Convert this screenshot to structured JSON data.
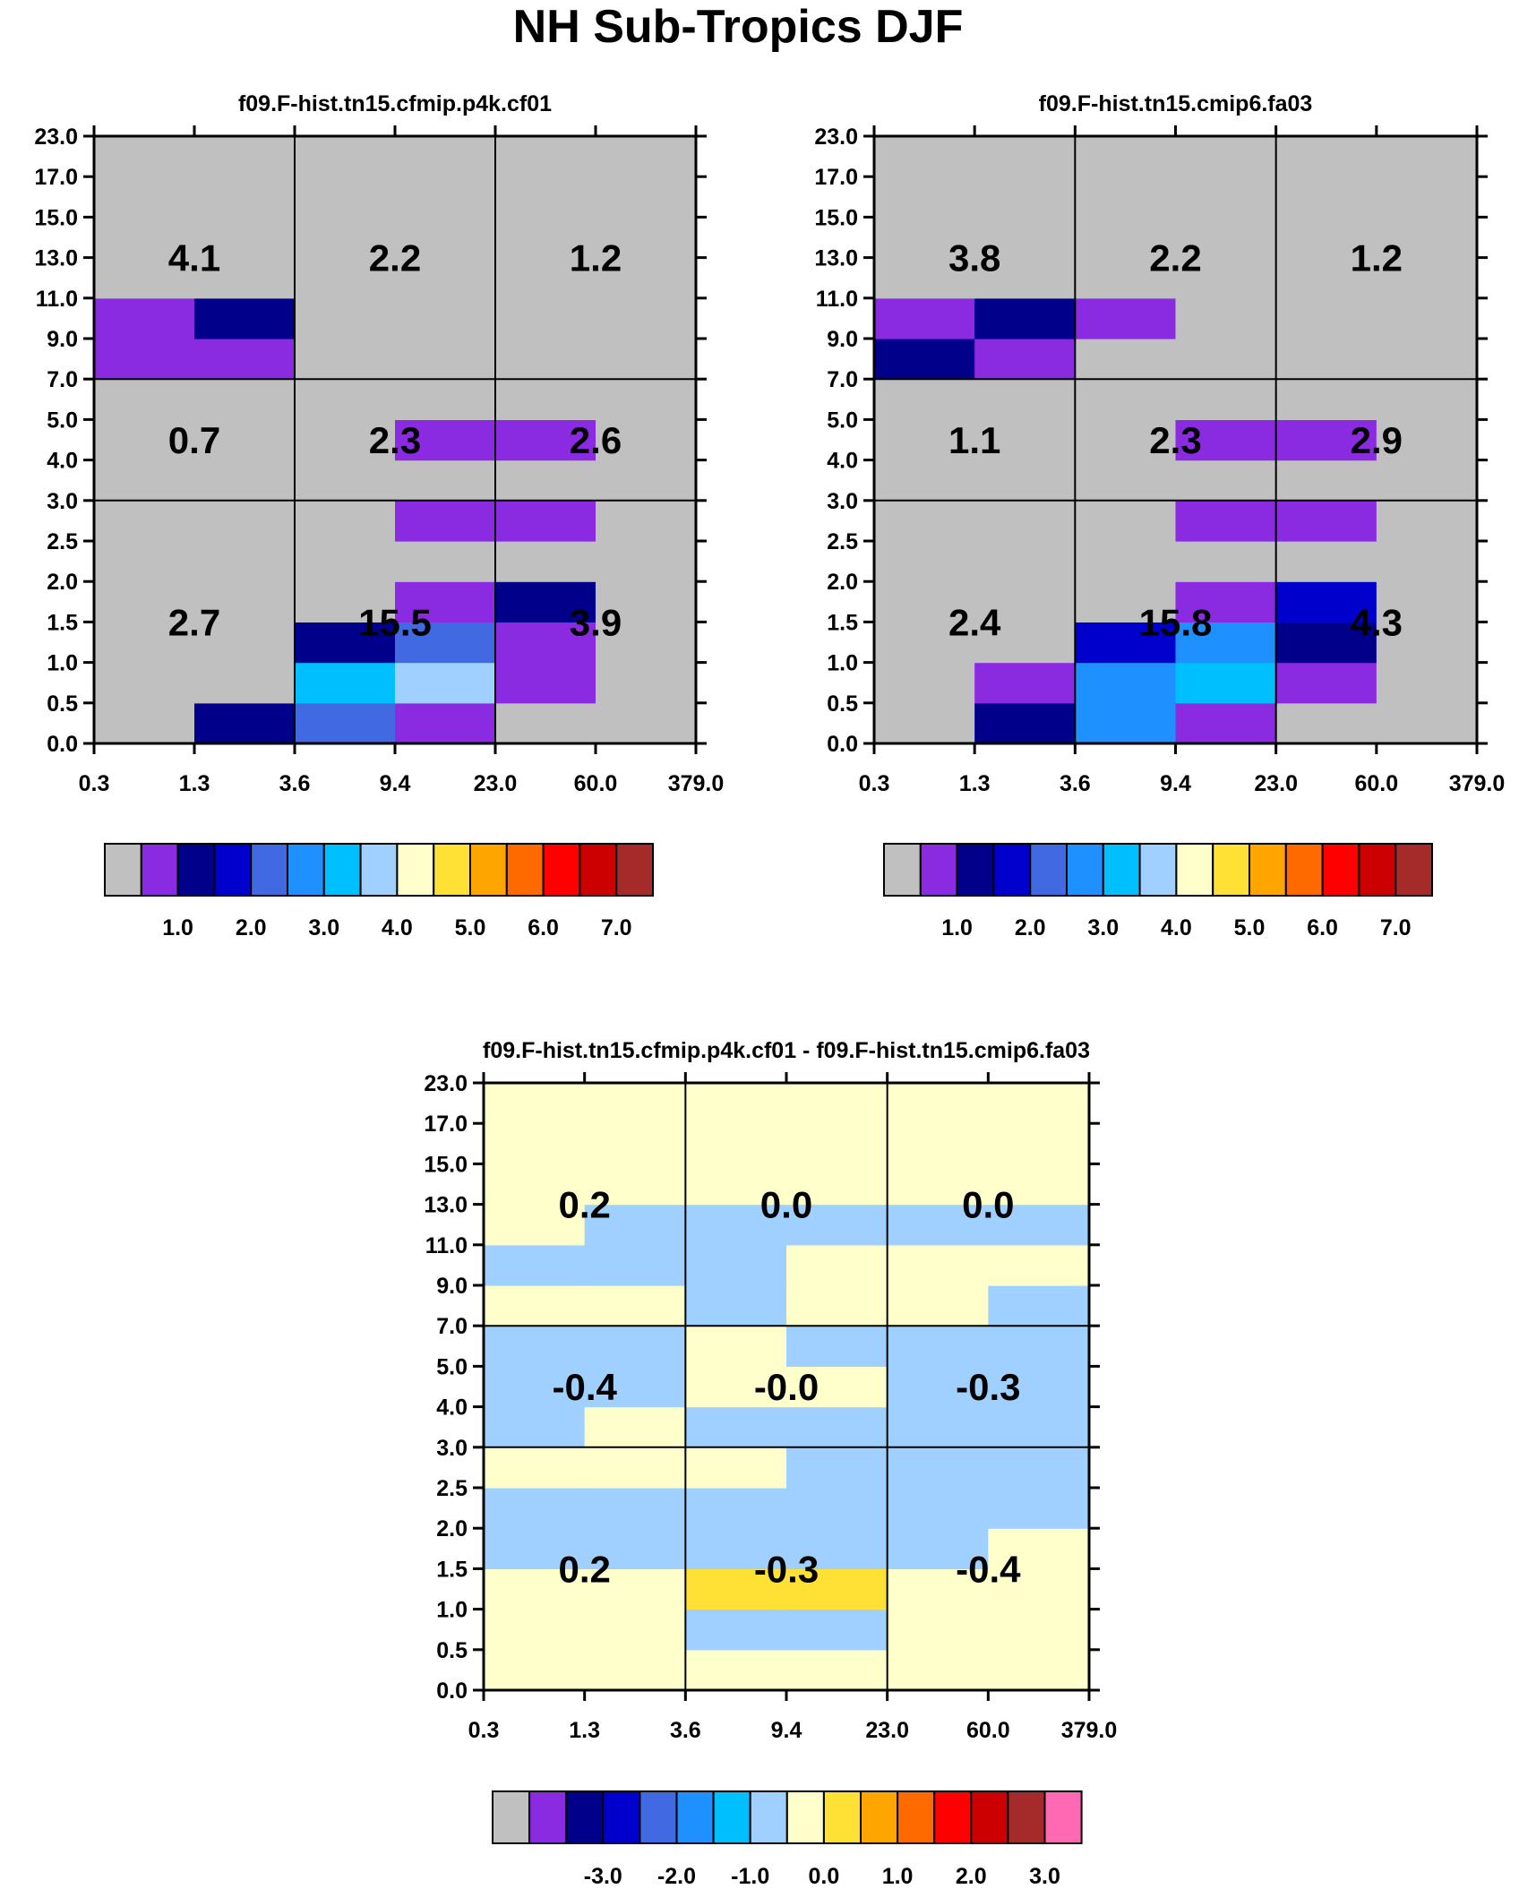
{
  "title": "NH Sub-Tropics DJF",
  "colors": {
    "palette": [
      "#c0c0c0",
      "#8a2be2",
      "#00008b",
      "#0000cd",
      "#4169e1",
      "#1e90ff",
      "#00bfff",
      "#a0d0ff",
      "#ffffcc",
      "#ffe135",
      "#ffa500",
      "#ff6a00",
      "#ff0000",
      "#cc0000",
      "#a52a2a",
      "#ff69b4"
    ]
  },
  "chart_data": [
    {
      "type": "heatmap",
      "title": "f09.F-hist.tn15.cfmip.p4k.cf01",
      "x_tick_labels": [
        "0.3",
        "1.3",
        "3.6",
        "9.4",
        "23.0",
        "60.0",
        "379.0"
      ],
      "y_tick_labels": [
        "0.0",
        "0.5",
        "1.0",
        "1.5",
        "2.0",
        "2.5",
        "3.0",
        "4.0",
        "5.0",
        "7.0",
        "9.0",
        "11.0",
        "13.0",
        "15.0",
        "17.0",
        "23.0"
      ],
      "cell_levels_note": "palette index per cell, rows from lowest pressure bin (bottom) upward, columns left to right",
      "cells": [
        [
          0,
          2,
          4,
          1,
          0,
          0
        ],
        [
          0,
          0,
          6,
          7,
          1,
          0
        ],
        [
          0,
          0,
          2,
          4,
          1,
          0
        ],
        [
          0,
          0,
          0,
          1,
          2,
          0
        ],
        [
          0,
          0,
          0,
          0,
          0,
          0
        ],
        [
          0,
          0,
          0,
          1,
          1,
          0
        ],
        [
          0,
          0,
          0,
          0,
          0,
          0
        ],
        [
          0,
          0,
          0,
          1,
          1,
          0
        ],
        [
          0,
          0,
          0,
          0,
          0,
          0
        ],
        [
          1,
          1,
          0,
          0,
          0,
          0
        ],
        [
          1,
          2,
          0,
          0,
          0,
          0
        ],
        [
          0,
          0,
          0,
          0,
          0,
          0
        ],
        [
          0,
          0,
          0,
          0,
          0,
          0
        ],
        [
          0,
          0,
          0,
          0,
          0,
          0
        ],
        [
          0,
          0,
          0,
          0,
          0,
          0
        ]
      ],
      "region_labels": [
        "2.7",
        "15.5",
        "3.9",
        "0.7",
        "2.3",
        "2.6",
        "4.1",
        "2.2",
        "1.2"
      ],
      "colorbar": {
        "labels": [
          "1.0",
          "2.0",
          "3.0",
          "4.0",
          "5.0",
          "6.0",
          "7.0"
        ],
        "n_boxes": 15
      }
    },
    {
      "type": "heatmap",
      "title": "f09.F-hist.tn15.cmip6.fa03",
      "x_tick_labels": [
        "0.3",
        "1.3",
        "3.6",
        "9.4",
        "23.0",
        "60.0",
        "379.0"
      ],
      "y_tick_labels": [
        "0.0",
        "0.5",
        "1.0",
        "1.5",
        "2.0",
        "2.5",
        "3.0",
        "4.0",
        "5.0",
        "7.0",
        "9.0",
        "11.0",
        "13.0",
        "15.0",
        "17.0",
        "23.0"
      ],
      "cells": [
        [
          0,
          2,
          5,
          1,
          0,
          0
        ],
        [
          0,
          1,
          5,
          6,
          1,
          0
        ],
        [
          0,
          0,
          3,
          5,
          2,
          0
        ],
        [
          0,
          0,
          0,
          1,
          3,
          0
        ],
        [
          0,
          0,
          0,
          0,
          0,
          0
        ],
        [
          0,
          0,
          0,
          1,
          1,
          0
        ],
        [
          0,
          0,
          0,
          0,
          0,
          0
        ],
        [
          0,
          0,
          0,
          1,
          1,
          0
        ],
        [
          0,
          0,
          0,
          0,
          0,
          0
        ],
        [
          2,
          1,
          0,
          0,
          0,
          0
        ],
        [
          1,
          2,
          1,
          0,
          0,
          0
        ],
        [
          0,
          0,
          0,
          0,
          0,
          0
        ],
        [
          0,
          0,
          0,
          0,
          0,
          0
        ],
        [
          0,
          0,
          0,
          0,
          0,
          0
        ],
        [
          0,
          0,
          0,
          0,
          0,
          0
        ]
      ],
      "region_labels": [
        "2.4",
        "15.8",
        "4.3",
        "1.1",
        "2.3",
        "2.9",
        "3.8",
        "2.2",
        "1.2"
      ],
      "colorbar": {
        "labels": [
          "1.0",
          "2.0",
          "3.0",
          "4.0",
          "5.0",
          "6.0",
          "7.0"
        ],
        "n_boxes": 15
      }
    },
    {
      "type": "heatmap",
      "title": "f09.F-hist.tn15.cfmip.p4k.cf01 - f09.F-hist.tn15.cmip6.fa03",
      "x_tick_labels": [
        "0.3",
        "1.3",
        "3.6",
        "9.4",
        "23.0",
        "60.0",
        "379.0"
      ],
      "y_tick_labels": [
        "0.0",
        "0.5",
        "1.0",
        "1.5",
        "2.0",
        "2.5",
        "3.0",
        "4.0",
        "5.0",
        "7.0",
        "9.0",
        "11.0",
        "13.0",
        "15.0",
        "17.0",
        "23.0"
      ],
      "cells": [
        [
          8,
          8,
          8,
          8,
          8,
          8
        ],
        [
          8,
          8,
          7,
          7,
          8,
          8
        ],
        [
          8,
          8,
          9,
          9,
          8,
          8
        ],
        [
          7,
          7,
          7,
          7,
          7,
          8
        ],
        [
          7,
          7,
          7,
          7,
          7,
          7
        ],
        [
          8,
          8,
          8,
          7,
          7,
          7
        ],
        [
          7,
          8,
          7,
          7,
          7,
          7
        ],
        [
          7,
          7,
          8,
          8,
          7,
          7
        ],
        [
          7,
          7,
          8,
          7,
          7,
          7
        ],
        [
          8,
          8,
          7,
          8,
          8,
          7
        ],
        [
          7,
          7,
          7,
          8,
          8,
          8
        ],
        [
          8,
          7,
          7,
          7,
          7,
          7
        ],
        [
          8,
          8,
          8,
          8,
          8,
          8
        ],
        [
          8,
          8,
          8,
          8,
          8,
          8
        ],
        [
          8,
          8,
          8,
          8,
          8,
          8
        ]
      ],
      "region_labels": [
        "0.2",
        "-0.3",
        "-0.4",
        "-0.4",
        "-0.0",
        "-0.3",
        "0.2",
        "0.0",
        "0.0"
      ],
      "colorbar": {
        "labels": [
          "-3.0",
          "-2.0",
          "-1.0",
          "0.0",
          "1.0",
          "2.0",
          "3.0"
        ],
        "n_boxes": 16
      }
    }
  ]
}
